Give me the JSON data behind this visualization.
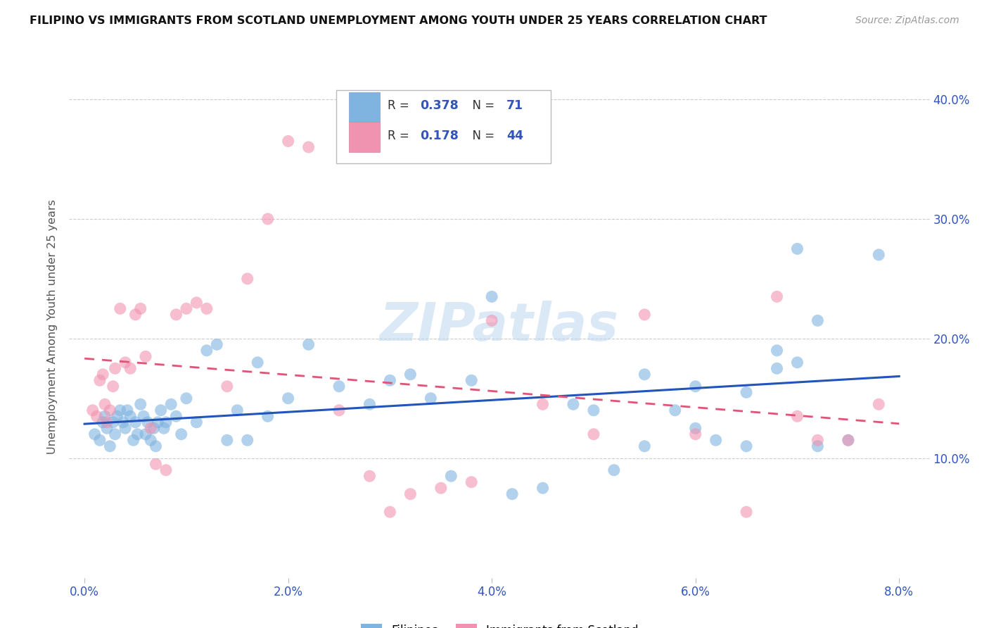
{
  "title": "FILIPINO VS IMMIGRANTS FROM SCOTLAND UNEMPLOYMENT AMONG YOUTH UNDER 25 YEARS CORRELATION CHART",
  "source": "Source: ZipAtlas.com",
  "ylabel": "Unemployment Among Youth under 25 years",
  "xlim": [
    0.0,
    8.0
  ],
  "ylim": [
    0.0,
    42.0
  ],
  "yticks": [
    10.0,
    20.0,
    30.0,
    40.0
  ],
  "xticks": [
    0.0,
    2.0,
    4.0,
    6.0,
    8.0
  ],
  "filipinos_color": "#7fb3e0",
  "scotland_color": "#f093b0",
  "trendline_filipinos_color": "#2255bb",
  "trendline_scotland_color": "#dd5577",
  "watermark": "ZIPatlas",
  "filipinos_x": [
    0.1,
    0.15,
    0.18,
    0.2,
    0.22,
    0.25,
    0.28,
    0.3,
    0.32,
    0.35,
    0.38,
    0.4,
    0.42,
    0.45,
    0.48,
    0.5,
    0.52,
    0.55,
    0.58,
    0.6,
    0.62,
    0.65,
    0.68,
    0.7,
    0.72,
    0.75,
    0.78,
    0.8,
    0.85,
    0.9,
    0.95,
    1.0,
    1.1,
    1.2,
    1.3,
    1.4,
    1.5,
    1.6,
    1.7,
    1.8,
    2.0,
    2.2,
    2.5,
    2.8,
    3.0,
    3.2,
    3.4,
    3.6,
    3.8,
    4.0,
    4.2,
    4.5,
    4.8,
    5.0,
    5.2,
    5.5,
    5.8,
    6.0,
    6.2,
    6.5,
    6.8,
    7.0,
    7.2,
    7.5,
    7.0,
    6.8,
    7.2,
    6.5,
    6.0,
    5.5,
    7.8
  ],
  "filipinos_y": [
    12.0,
    11.5,
    13.0,
    13.5,
    12.5,
    11.0,
    13.0,
    12.0,
    13.5,
    14.0,
    13.0,
    12.5,
    14.0,
    13.5,
    11.5,
    13.0,
    12.0,
    14.5,
    13.5,
    12.0,
    13.0,
    11.5,
    12.5,
    11.0,
    13.0,
    14.0,
    12.5,
    13.0,
    14.5,
    13.5,
    12.0,
    15.0,
    13.0,
    19.0,
    19.5,
    11.5,
    14.0,
    11.5,
    18.0,
    13.5,
    15.0,
    19.5,
    16.0,
    14.5,
    16.5,
    17.0,
    15.0,
    8.5,
    16.5,
    23.5,
    7.0,
    7.5,
    14.5,
    14.0,
    9.0,
    17.0,
    14.0,
    16.0,
    11.5,
    11.0,
    19.0,
    27.5,
    21.5,
    11.5,
    18.0,
    17.5,
    11.0,
    15.5,
    12.5,
    11.0,
    27.0
  ],
  "scotland_x": [
    0.08,
    0.12,
    0.15,
    0.18,
    0.2,
    0.22,
    0.25,
    0.28,
    0.3,
    0.35,
    0.4,
    0.45,
    0.5,
    0.55,
    0.6,
    0.65,
    0.7,
    0.8,
    0.9,
    1.0,
    1.1,
    1.2,
    1.4,
    1.6,
    1.8,
    2.0,
    2.2,
    2.5,
    2.8,
    3.0,
    3.2,
    3.5,
    3.8,
    4.0,
    4.5,
    5.0,
    5.5,
    6.0,
    6.5,
    6.8,
    7.0,
    7.2,
    7.5,
    7.8
  ],
  "scotland_y": [
    14.0,
    13.5,
    16.5,
    17.0,
    14.5,
    13.0,
    14.0,
    16.0,
    17.5,
    22.5,
    18.0,
    17.5,
    22.0,
    22.5,
    18.5,
    12.5,
    9.5,
    9.0,
    22.0,
    22.5,
    23.0,
    22.5,
    16.0,
    25.0,
    30.0,
    36.5,
    36.0,
    14.0,
    8.5,
    5.5,
    7.0,
    7.5,
    8.0,
    21.5,
    14.5,
    12.0,
    22.0,
    12.0,
    5.5,
    23.5,
    13.5,
    11.5,
    11.5,
    14.5
  ]
}
